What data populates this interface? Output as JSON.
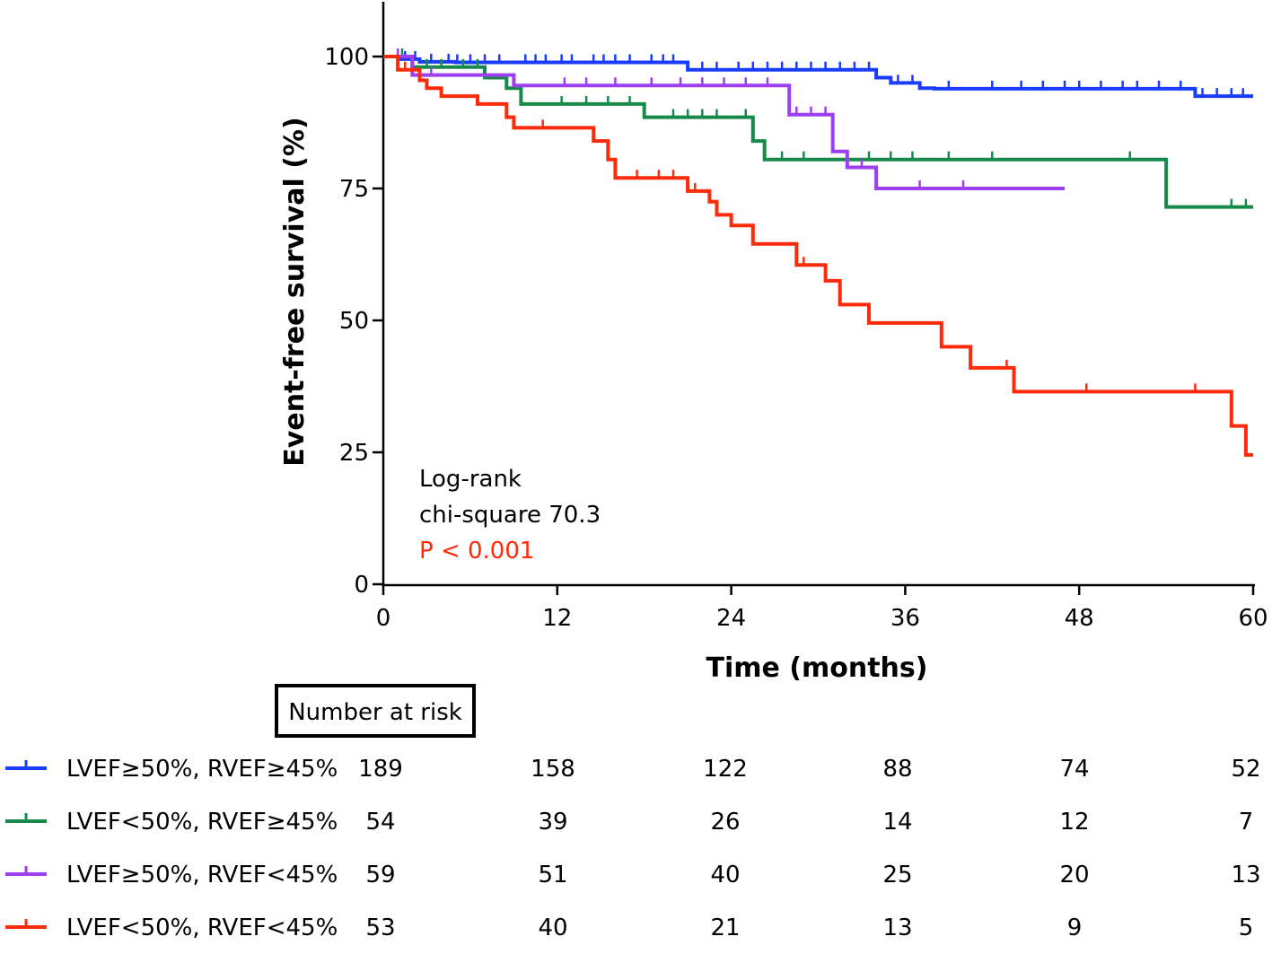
{
  "chart_data": {
    "type": "line",
    "subtype": "kaplan-meier",
    "title": "",
    "xlabel": "Time (months)",
    "ylabel": "Event-free survival (%)",
    "xlim": [
      0,
      60
    ],
    "ylim": [
      0,
      110
    ],
    "xticks": [
      0,
      12,
      24,
      36,
      48,
      60
    ],
    "xtick_labels": [
      "0",
      "12",
      "24",
      "36",
      "48",
      "60"
    ],
    "yticks": [
      0,
      25,
      50,
      75,
      100
    ],
    "ytick_labels": [
      "0",
      "25",
      "50",
      "75",
      "100"
    ],
    "grid": false,
    "legend_position": "below the chart",
    "annotations": {
      "test_name": "Log-rank",
      "statistic": "chi-square 70.3",
      "p_value": "P < 0.001",
      "p_value_color": "#ff2a0a"
    },
    "series": [
      {
        "name": "LVEF≥50%, RVEF≥45%",
        "color": "#1a3cff",
        "x": [
          0,
          1.2,
          2.5,
          5.0,
          7.5,
          9.0,
          14.0,
          20.0,
          21.0,
          27.0,
          34.0,
          35.0,
          37.0,
          38.0,
          56.0,
          60.0
        ],
        "y": [
          100,
          99.5,
          99.0,
          98.9,
          98.9,
          98.9,
          98.9,
          98.9,
          97.5,
          97.5,
          96.0,
          95.0,
          94.0,
          93.9,
          92.5,
          92.5
        ],
        "censor_x": [
          1.5,
          2.2,
          3.3,
          4.5,
          5.1,
          6.0,
          7.0,
          8.0,
          9.8,
          10.5,
          11.2,
          12.3,
          13.0,
          14.5,
          15.2,
          16.0,
          17.0,
          18.5,
          19.3,
          20.0,
          22.0,
          23.0,
          24.5,
          25.5,
          26.5,
          27.5,
          28.5,
          29.5,
          30.5,
          31.5,
          32.5,
          33.5,
          35.5,
          36.5,
          39.0,
          42.0,
          44.0,
          45.5,
          47.0,
          48.0,
          49.5,
          51.0,
          52.0,
          53.5,
          55.0,
          56.5,
          57.5,
          58.5,
          59.3
        ]
      },
      {
        "name": "LVEF<50%, RVEF≥45%",
        "color": "#178a4b",
        "x": [
          0,
          1.0,
          2.0,
          9.5,
          10.0,
          18.0,
          18.5,
          26.0,
          26.5,
          54.0,
          54.5,
          60.0
        ],
        "y": [
          100,
          100,
          98.0,
          98.0,
          91.0,
          91.0,
          88.5,
          88.5,
          80.5,
          80.5,
          71.5,
          71.5
        ],
        "yseq": [
          100,
          98.0,
          96.0,
          94.0,
          91.0,
          88.5,
          84.0,
          80.5,
          71.5
        ],
        "xseq": [
          2.0,
          7.0,
          8.5,
          9.5,
          18.0,
          25.5,
          26.3,
          54.0
        ],
        "censor_x": [
          1.3,
          3.0,
          4.0,
          5.5,
          6.5,
          12.3,
          14.0,
          15.5,
          17.0,
          20.0,
          21.0,
          22.0,
          23.0,
          25.0,
          27.5,
          29.0,
          33.5,
          35.0,
          36.5,
          39.0,
          42.0,
          51.5,
          58.5,
          59.5
        ]
      },
      {
        "name": "LVEF≥50%, RVEF<45%",
        "color": "#9d3ff0",
        "xseq": [
          2.0,
          9.0,
          28.0,
          31.0,
          32.0,
          34.0,
          47.0
        ],
        "yseq": [
          100,
          96.5,
          94.5,
          89.0,
          82.0,
          79.0,
          75.0
        ],
        "censor_x": [
          1.0,
          3.3,
          12.5,
          14.0,
          16.0,
          18.5,
          20.5,
          22.0,
          23.5,
          25.0,
          26.5,
          28.5,
          29.5,
          30.5,
          33.0,
          37.0,
          40.0,
          49.0,
          52.0,
          59.3,
          59.8
        ]
      },
      {
        "name": "LVEF<50%, RVEF<45%",
        "color": "#ff2a0a",
        "xseq": [
          1.0,
          2.5,
          3.0,
          4.0,
          6.5,
          8.5,
          9.0,
          14.5,
          15.5,
          16.0,
          21.0,
          22.5,
          23.0,
          24.0,
          25.5,
          28.5,
          30.5,
          31.5,
          33.5,
          38.5,
          40.5,
          43.5,
          58.5,
          59.5
        ],
        "yseq": [
          100,
          97.5,
          95.5,
          94.0,
          92.5,
          91.0,
          88.5,
          86.5,
          84.0,
          80.5,
          77.0,
          74.5,
          72.5,
          70.0,
          68.0,
          64.5,
          60.5,
          57.5,
          53.0,
          49.5,
          45.0,
          41.0,
          36.5,
          30.0,
          24.5
        ],
        "censor_x": [
          1.5,
          11.0,
          17.5,
          19.0,
          20.0,
          21.5,
          29.0,
          43.0,
          48.5,
          56.0
        ]
      }
    ],
    "number_at_risk": {
      "title": "Number at risk",
      "times": [
        0,
        12,
        24,
        36,
        48,
        60
      ],
      "rows": [
        {
          "name": "LVEF≥50%, RVEF≥45%",
          "color": "#1a3cff",
          "values": [
            "189",
            "158",
            "122",
            "88",
            "74",
            "52"
          ]
        },
        {
          "name": "LVEF<50%, RVEF≥45%",
          "color": "#178a4b",
          "values": [
            "54",
            "39",
            "26",
            "14",
            "12",
            "7"
          ]
        },
        {
          "name": "LVEF≥50%, RVEF<45%",
          "color": "#9d3ff0",
          "values": [
            "59",
            "51",
            "40",
            "25",
            "20",
            "13"
          ]
        },
        {
          "name": "LVEF<50%, RVEF<45%",
          "color": "#ff2a0a",
          "values": [
            "53",
            "40",
            "21",
            "13",
            "9",
            "5"
          ]
        }
      ]
    }
  }
}
